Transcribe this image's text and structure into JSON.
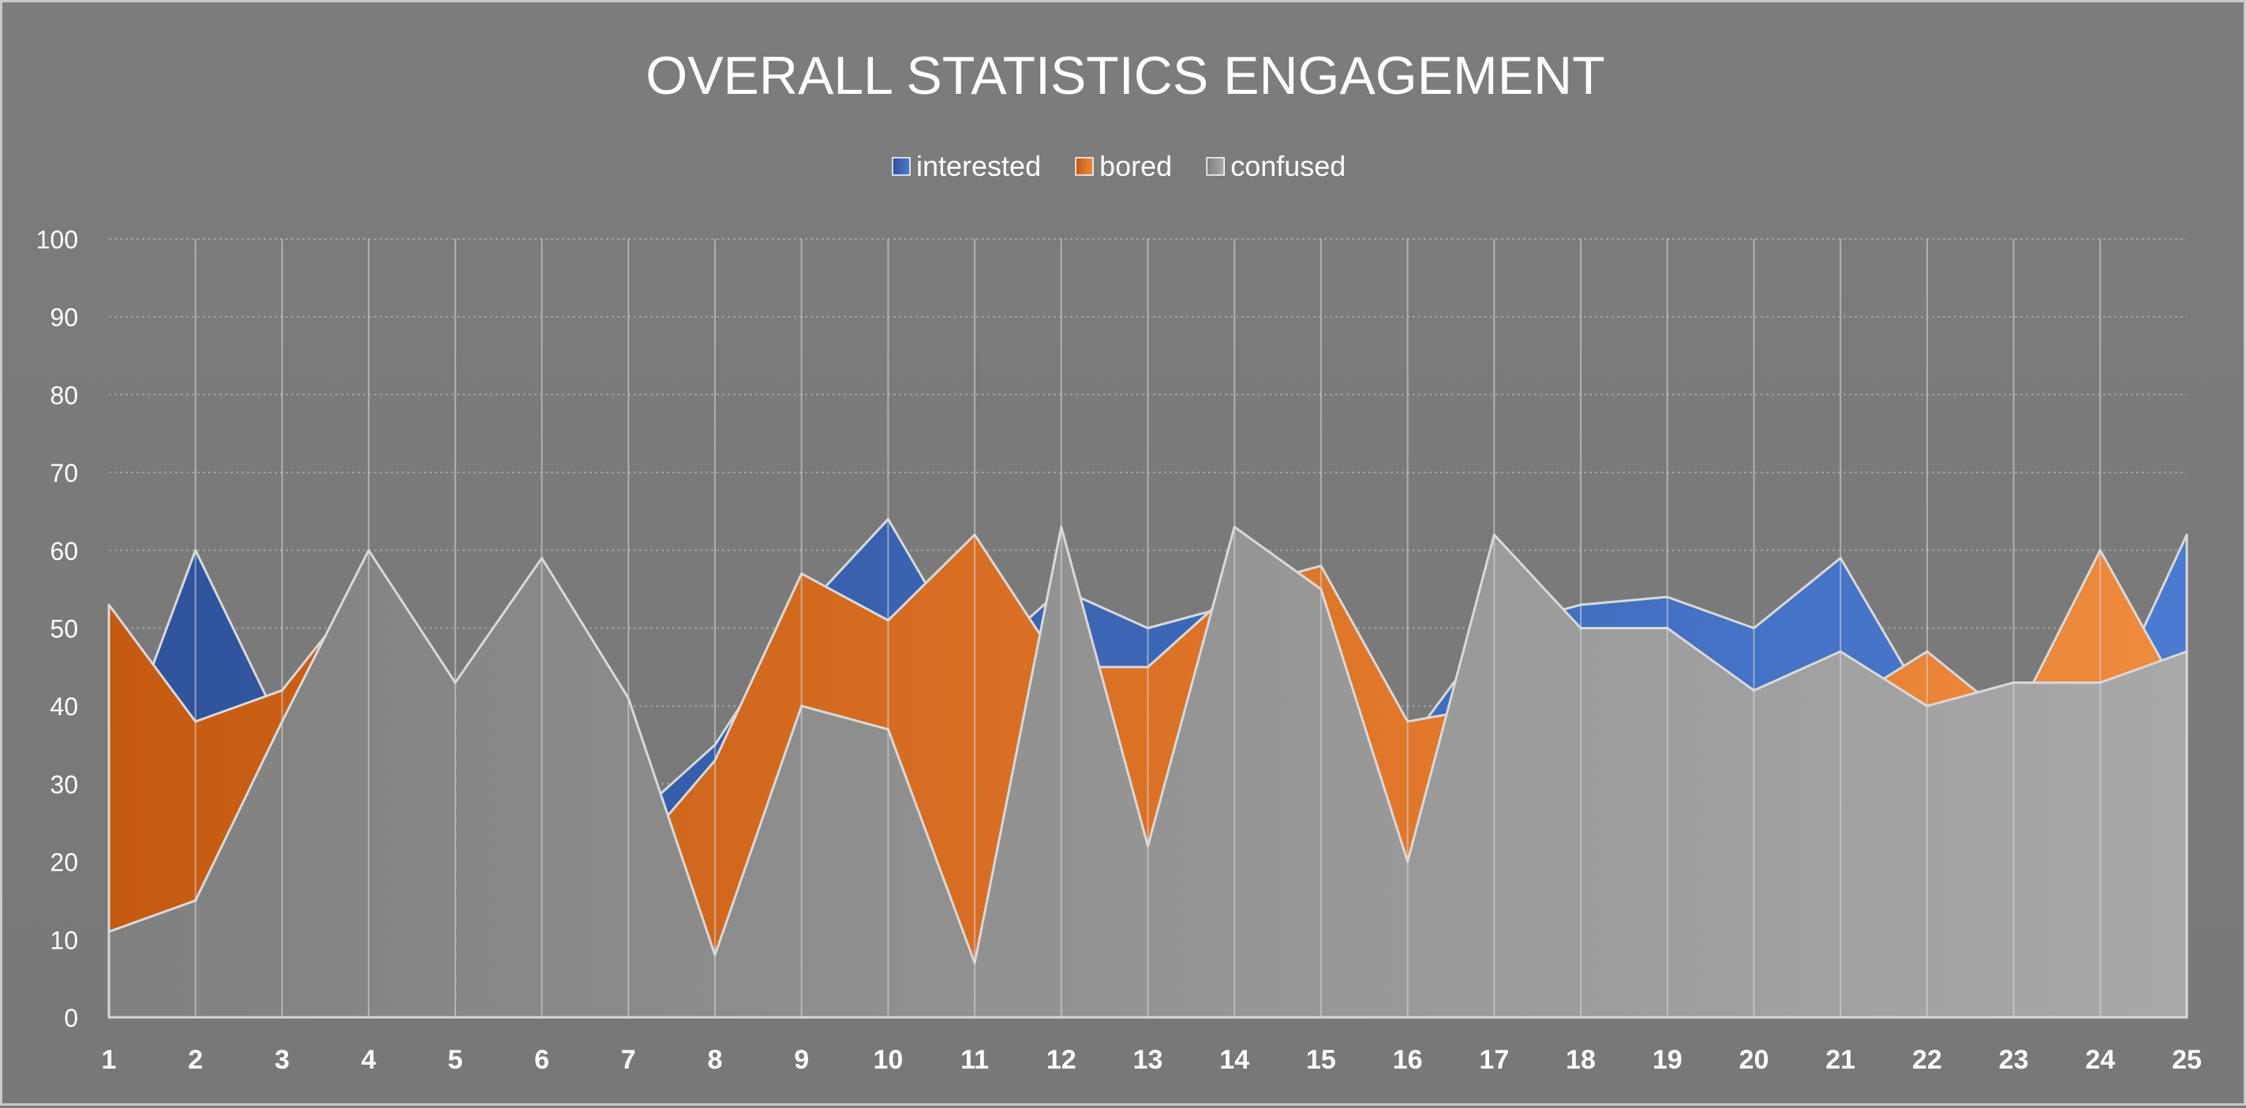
{
  "chart_data": {
    "type": "area",
    "title": "OVERALL STATISTICS ENGAGEMENT",
    "xlabel": "",
    "ylabel": "",
    "ylim": [
      0,
      100
    ],
    "yticks": [
      0,
      10,
      20,
      30,
      40,
      50,
      60,
      70,
      80,
      90,
      100
    ],
    "categories": [
      "1",
      "2",
      "3",
      "4",
      "5",
      "6",
      "7",
      "8",
      "9",
      "10",
      "11",
      "12",
      "13",
      "14",
      "15",
      "16",
      "17",
      "18",
      "19",
      "20",
      "21",
      "22",
      "23",
      "24",
      "25"
    ],
    "grid": true,
    "legend": "top",
    "series": [
      {
        "name": "interested",
        "color": "#4472c4",
        "values": [
          30,
          60,
          37,
          40,
          35,
          42,
          25,
          35,
          52,
          64,
          45,
          55,
          50,
          53,
          45,
          35,
          50,
          53,
          54,
          50,
          59,
          40,
          38,
          38,
          62
        ]
      },
      {
        "name": "bored",
        "color": "#ed7d31",
        "values": [
          53,
          38,
          42,
          56,
          40,
          40,
          20,
          33,
          57,
          51,
          62,
          45,
          45,
          55,
          58,
          38,
          40,
          40,
          40,
          40,
          40,
          47,
          38,
          60,
          40
        ]
      },
      {
        "name": "confused",
        "color": "#a5a5a5",
        "values": [
          11,
          15,
          38,
          60,
          43,
          59,
          41,
          8,
          40,
          37,
          7,
          63,
          22,
          63,
          55,
          20,
          62,
          50,
          50,
          42,
          47,
          40,
          43,
          43,
          47
        ]
      }
    ]
  }
}
